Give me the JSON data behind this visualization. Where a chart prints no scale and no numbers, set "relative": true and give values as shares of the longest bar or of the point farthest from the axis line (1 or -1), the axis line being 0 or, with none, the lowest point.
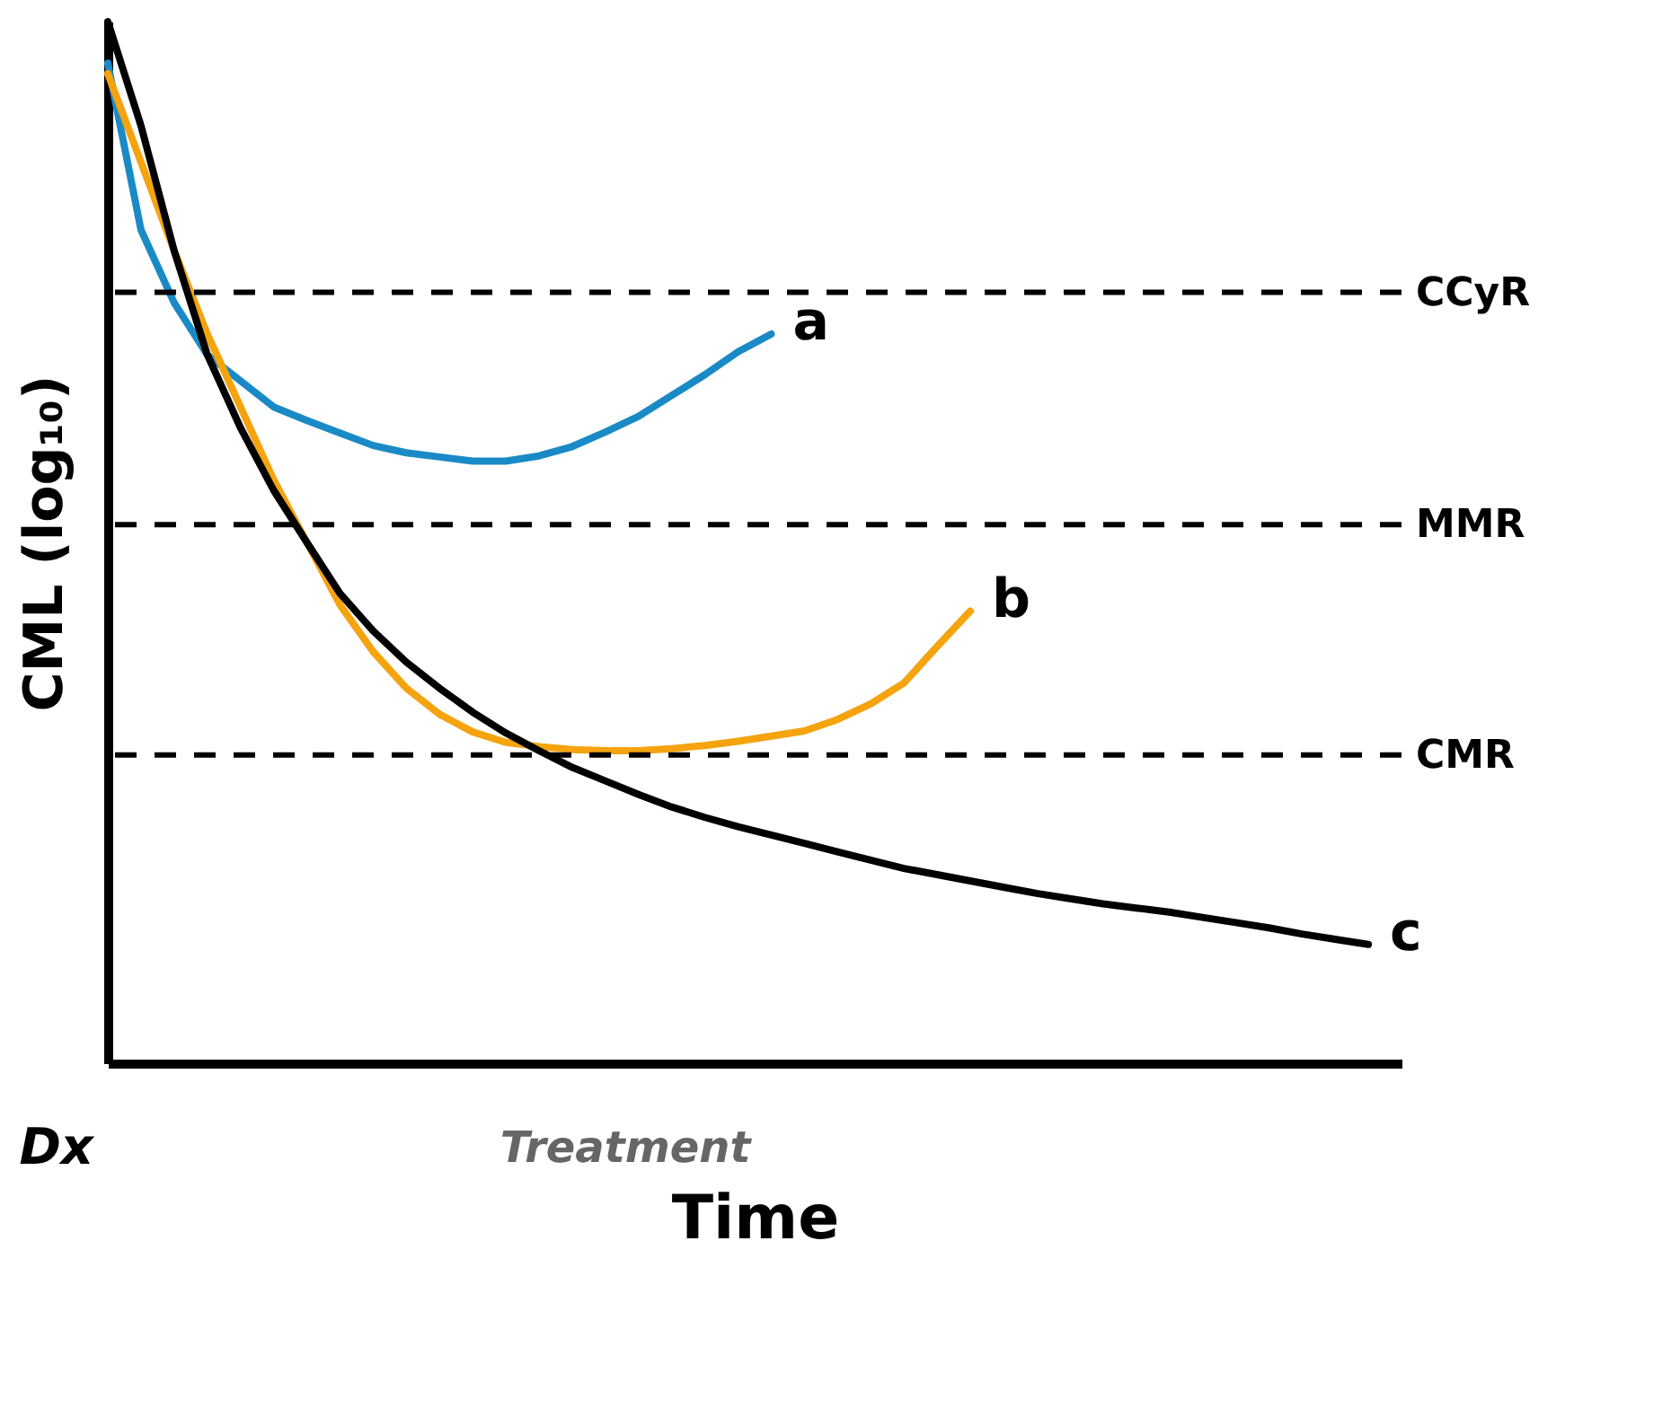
{
  "chart_data": {
    "type": "line",
    "relative": true,
    "xlabel": "Time",
    "ylabel": "CML (log₁₀)",
    "categories": [
      null,
      null,
      null,
      null,
      null,
      null,
      null,
      null,
      null,
      null,
      null,
      null,
      null,
      null,
      null,
      null,
      null,
      null,
      null,
      null,
      null,
      null,
      null,
      null,
      null,
      null,
      null,
      null,
      null,
      null,
      null,
      null,
      null,
      null,
      null,
      null,
      null,
      null,
      null,
      null
    ],
    "ylim": [
      0,
      1
    ],
    "tick_labels": false,
    "grid": false,
    "marker": "none",
    "line_style": "solid",
    "series": [
      {
        "name": "a",
        "color": "#1a8ac6",
        "values": [
          0.96,
          0.8,
          0.73,
          0.68,
          0.655,
          0.63,
          0.617,
          0.605,
          0.593,
          0.586,
          0.582,
          0.578,
          0.578,
          0.583,
          0.592,
          0.606,
          0.621,
          0.641,
          0.661,
          0.683,
          0.7,
          null,
          null,
          null,
          null,
          null,
          null,
          null,
          null,
          null,
          null,
          null,
          null,
          null,
          null,
          null,
          null,
          null,
          null,
          null
        ]
      },
      {
        "name": "b",
        "color": "#f5a30f",
        "values": [
          0.95,
          0.865,
          0.78,
          0.7,
          0.63,
          0.56,
          0.5,
          0.44,
          0.395,
          0.36,
          0.335,
          0.318,
          0.308,
          0.304,
          0.301,
          0.3,
          0.3,
          0.302,
          0.305,
          0.309,
          0.314,
          0.319,
          0.33,
          0.345,
          0.365,
          0.4,
          0.434,
          null,
          null,
          null,
          null,
          null,
          null,
          null,
          null,
          null,
          null,
          null,
          null,
          null
        ]
      },
      {
        "name": "c",
        "color": "#000000",
        "values": [
          1,
          0.9,
          0.78,
          0.68,
          0.61,
          0.55,
          0.5,
          0.451,
          0.415,
          0.385,
          0.36,
          0.337,
          0.317,
          0.3,
          0.284,
          0.271,
          0.258,
          0.246,
          0.236,
          0.227,
          0.219,
          0.211,
          0.203,
          0.195,
          0.187,
          0.181,
          0.175,
          0.169,
          0.163,
          0.158,
          0.153,
          0.149,
          0.145,
          0.14,
          0.135,
          0.13,
          0.124,
          0.119,
          0.114,
          null
        ]
      }
    ],
    "ref_lines": [
      {
        "axis": "y",
        "value": 0.74,
        "label": "CCyR",
        "color": "#000000",
        "line_style": "dashed"
      },
      {
        "axis": "y",
        "value": 0.517,
        "label": "MMR",
        "color": "#000000",
        "line_style": "dashed"
      },
      {
        "axis": "y",
        "value": 0.296,
        "label": "CMR",
        "color": "#000000",
        "line_style": "dashed"
      }
    ],
    "annotations": [
      "Dx",
      "Treatment"
    ]
  }
}
